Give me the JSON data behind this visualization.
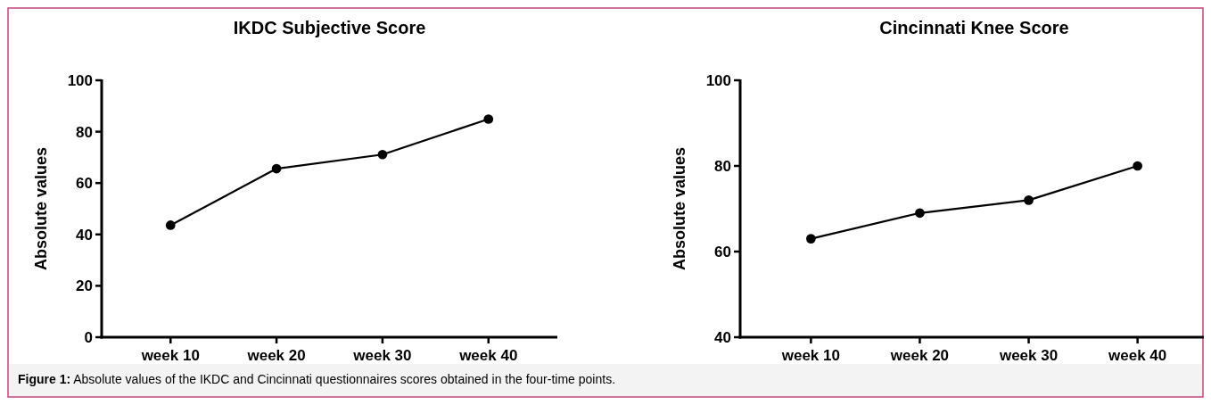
{
  "chart_data": [
    {
      "type": "line",
      "title": "IKDC Subjective Score",
      "ylabel": "Absolute values",
      "categories": [
        "week 10",
        "week 20",
        "week 30",
        "week 40"
      ],
      "series": [
        {
          "color": "#000000",
          "values": [
            43.6,
            65.6,
            71.1,
            84.9
          ]
        }
      ],
      "ylim": [
        0,
        100
      ],
      "yticks": [
        0,
        20,
        40,
        60,
        80,
        100
      ],
      "marker": "circle",
      "annotations": [
        "Figure 1: Absolute values of the IKDC and Cincinnati questionnaires scores obtained in the four-time points."
      ]
    },
    {
      "type": "line",
      "title": "Cincinnati Knee Score",
      "ylabel": "Absolute values",
      "categories": [
        "week 10",
        "week 20",
        "week 30",
        "week 40"
      ],
      "series": [
        {
          "color": "#000000",
          "values": [
            63,
            69,
            72,
            80
          ]
        }
      ],
      "ylim": [
        40,
        100
      ],
      "yticks": [
        40,
        60,
        80,
        100
      ],
      "marker": "circle"
    }
  ]
}
